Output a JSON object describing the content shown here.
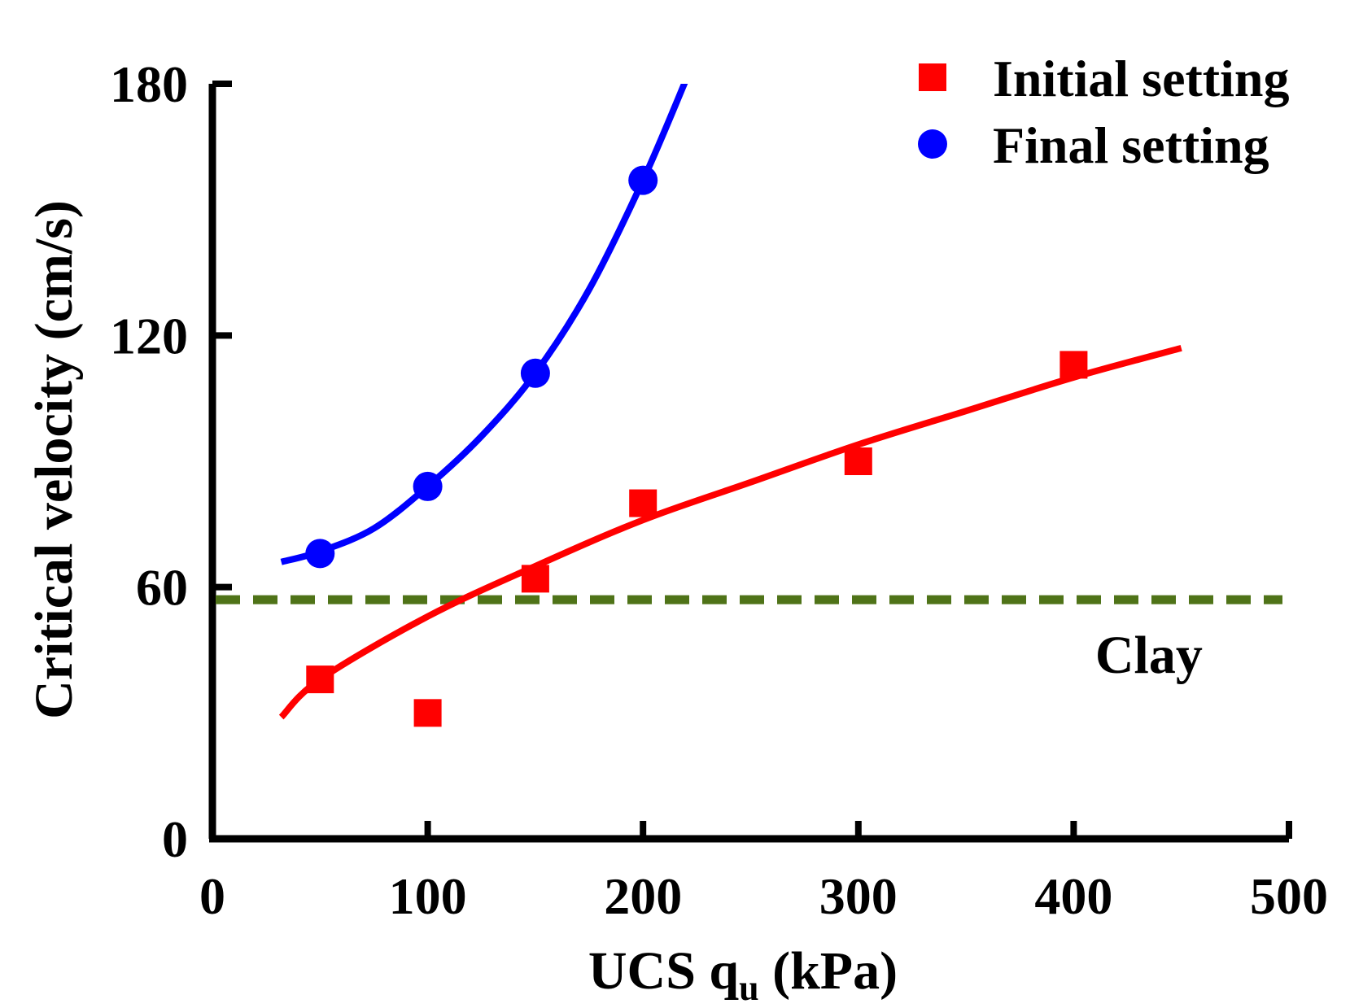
{
  "chart_data": {
    "type": "scatter",
    "title": "",
    "xlabel": "UCS q",
    "xlabel_sub": "u",
    "xlabel_unit": "(kPa)",
    "ylabel": "Critical velocity (cm/s)",
    "xlim": [
      0,
      500
    ],
    "ylim": [
      0,
      180
    ],
    "x_ticks": [
      0,
      100,
      200,
      300,
      400,
      500
    ],
    "y_ticks": [
      0,
      60,
      120,
      180
    ],
    "x_tick_labels": [
      "0",
      "100",
      "200",
      "300",
      "400",
      "500"
    ],
    "y_tick_labels": [
      "0",
      "60",
      "120",
      "180"
    ],
    "grid": false,
    "legend_position": "top-right",
    "series": [
      {
        "name": "Initial setting",
        "marker": "square",
        "color": "#ff0000",
        "x": [
          50,
          100,
          150,
          200,
          300,
          400
        ],
        "y": [
          38,
          30,
          62,
          80,
          90,
          113
        ],
        "fit": {
          "x_start": 32,
          "x_end": 450,
          "points_x": [
            32,
            50,
            100,
            150,
            200,
            250,
            300,
            350,
            400,
            450
          ],
          "points_y": [
            29,
            38,
            53,
            65,
            76,
            85,
            94,
            102,
            110,
            117
          ]
        }
      },
      {
        "name": "Final setting",
        "marker": "circle",
        "color": "#0000ff",
        "x": [
          50,
          100,
          150,
          200
        ],
        "y": [
          68,
          84,
          111,
          157
        ],
        "fit": {
          "x_start": 32,
          "x_end": 220,
          "points_x": [
            32,
            50,
            75,
            100,
            125,
            150,
            175,
            200,
            220
          ],
          "points_y": [
            66,
            68.5,
            74,
            84,
            96,
            111,
            131,
            157,
            181
          ]
        }
      }
    ],
    "reference_line": {
      "y": 57,
      "color": "#4f7318",
      "style": "dashed",
      "label": "Clay"
    }
  }
}
